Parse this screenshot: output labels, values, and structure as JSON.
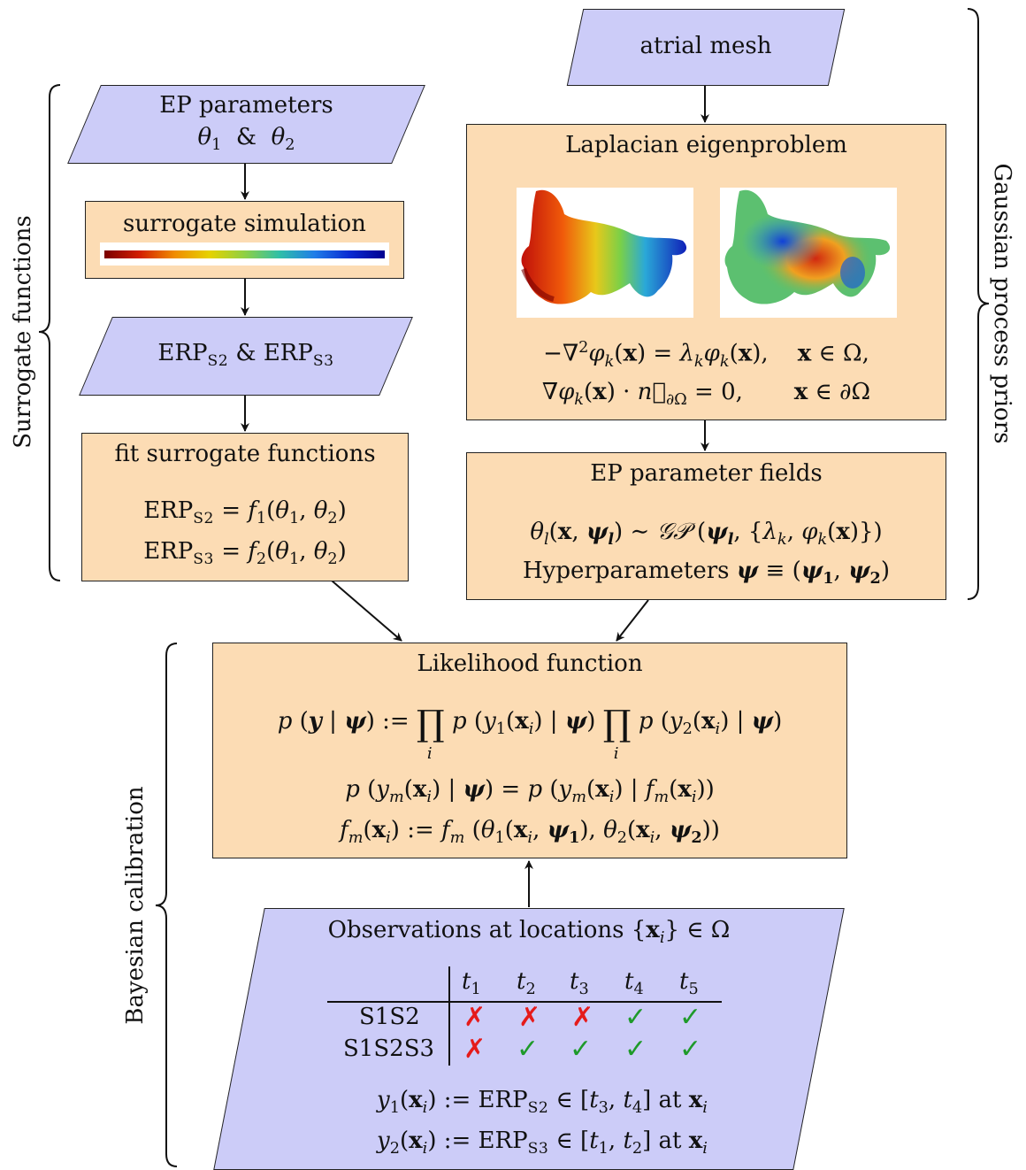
{
  "side_labels": {
    "surrogate": "Surrogate functions",
    "gaussian": "Gaussian process priors",
    "bayesian": "Bayesian calibration"
  },
  "ep_params": {
    "title": "EP parameters",
    "line2": "θ₁  &  θ₂"
  },
  "surrogate_sim": {
    "title": "surrogate simulation"
  },
  "erp_box": {
    "text": "ERP S2 & ERP S3"
  },
  "fit": {
    "title": "fit surrogate functions",
    "eq1": "ERP S2 = f1(θ1, θ2)",
    "eq2": "ERP S3 = f2(θ1, θ2)"
  },
  "mesh": {
    "title": "atrial mesh"
  },
  "laplacian": {
    "title": "Laplacian eigenproblem",
    "eq1": "−∇²φk(x) = λk φk(x),   x ∈ Ω,",
    "eq2": "∇φk(x) · n∂Ω = 0,   x ∈ ∂Ω"
  },
  "fields": {
    "title": "EP parameter fields",
    "eq1": "θl(x, ψl) ∼ GP (ψl, {λk, φk(x)})",
    "eq2": "Hyperparameters ψ ≡ (ψ1, ψ2)"
  },
  "likelihood": {
    "title": "Likelihood function",
    "eq1": "p (y | ψ) := ∏i p (y1(xi) | ψ) ∏i p (y2(xi) | ψ)",
    "eq2": "p (ym(xi) | ψ) = p (ym(xi) | fm(xi))",
    "eq3": "fm(xi) := fm (θ1(xi, ψ1), θ2(xi, ψ2))"
  },
  "observations": {
    "title": "Observations at locations {xi} ∈ Ω",
    "columns": [
      "t1",
      "t2",
      "t3",
      "t4",
      "t5"
    ],
    "rows": [
      {
        "label": "S1S2",
        "marks": [
          "✗",
          "✗",
          "✗",
          "✓",
          "✓"
        ]
      },
      {
        "label": "S1S2S3",
        "marks": [
          "✗",
          "✓",
          "✓",
          "✓",
          "✓"
        ]
      }
    ],
    "def1": "y1(xi) := ERP S2 ∈ [t3, t4] at xi",
    "def2": "y2(xi) := ERP S3 ∈ [t1, t2] at xi"
  },
  "colors": {
    "orange_box": "#fcdcb4",
    "purple_box": "#ccccf8",
    "check": "#1e9a2a",
    "cross": "#e51b1b"
  }
}
